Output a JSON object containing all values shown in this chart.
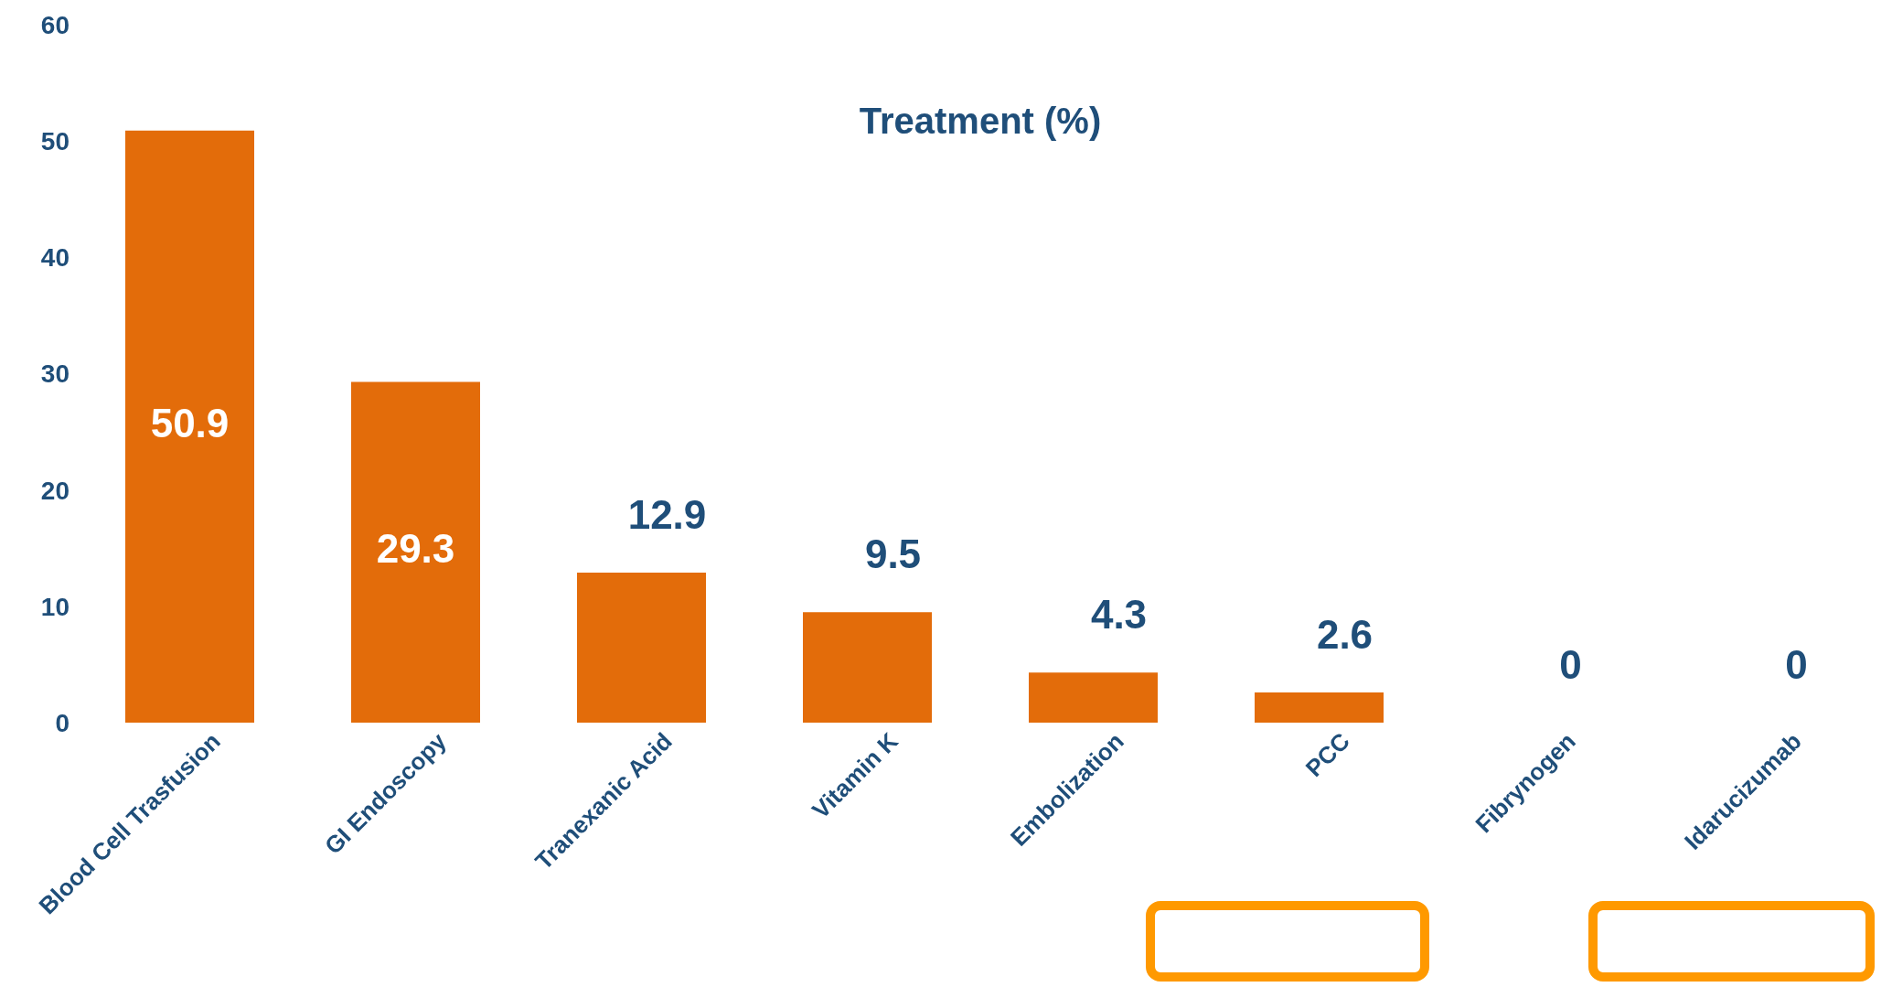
{
  "chart_data": {
    "type": "bar",
    "title": "Treatment (%)",
    "categories": [
      "Blood Cell Trasfusion",
      "GI Endoscopy",
      "Tranexanic Acid",
      "Vitamin K",
      "Embolization",
      "PCC",
      "Fibrynogen",
      "Idarucizumab"
    ],
    "values": [
      50.9,
      29.3,
      12.9,
      9.5,
      4.3,
      2.6,
      0,
      0
    ],
    "color": "#e36c0a",
    "ylim": [
      0,
      60
    ],
    "yticks": [
      0,
      10,
      20,
      30,
      40,
      50,
      60
    ],
    "data_labels": true
  }
}
